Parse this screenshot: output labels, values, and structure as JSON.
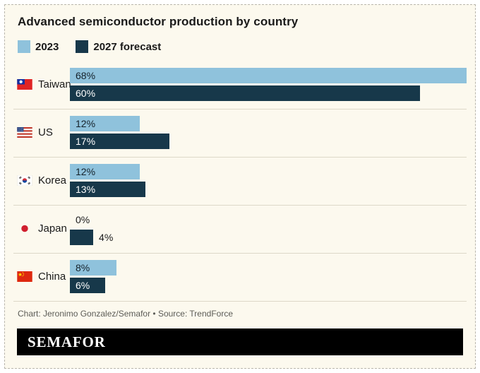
{
  "title": "Advanced semiconductor production by country",
  "legend": {
    "items": [
      {
        "label": "2023",
        "color": "#8fc2dc"
      },
      {
        "label": "2027 forecast",
        "color": "#17384a"
      }
    ]
  },
  "chart_data": {
    "type": "bar",
    "orientation": "horizontal",
    "title": "Advanced semiconductor production by country",
    "series_names": [
      "2023",
      "2027 forecast"
    ],
    "value_unit": "%",
    "xmax": 68,
    "rows": [
      {
        "country": "Taiwan",
        "flag": "taiwan",
        "values": [
          68,
          60
        ]
      },
      {
        "country": "US",
        "flag": "us",
        "values": [
          12,
          17
        ]
      },
      {
        "country": "Korea",
        "flag": "korea",
        "values": [
          12,
          13
        ]
      },
      {
        "country": "Japan",
        "flag": "japan",
        "values": [
          0,
          4
        ]
      },
      {
        "country": "China",
        "flag": "china",
        "values": [
          8,
          6
        ]
      }
    ]
  },
  "footer": {
    "credit": "Chart: Jeronimo Gonzalez/Semafor • Source: TrendForce",
    "logo": "SEMAFOR"
  },
  "colors": {
    "series_2023": "#8fc2dc",
    "series_2027": "#17384a",
    "background": "#fcf9ee"
  }
}
